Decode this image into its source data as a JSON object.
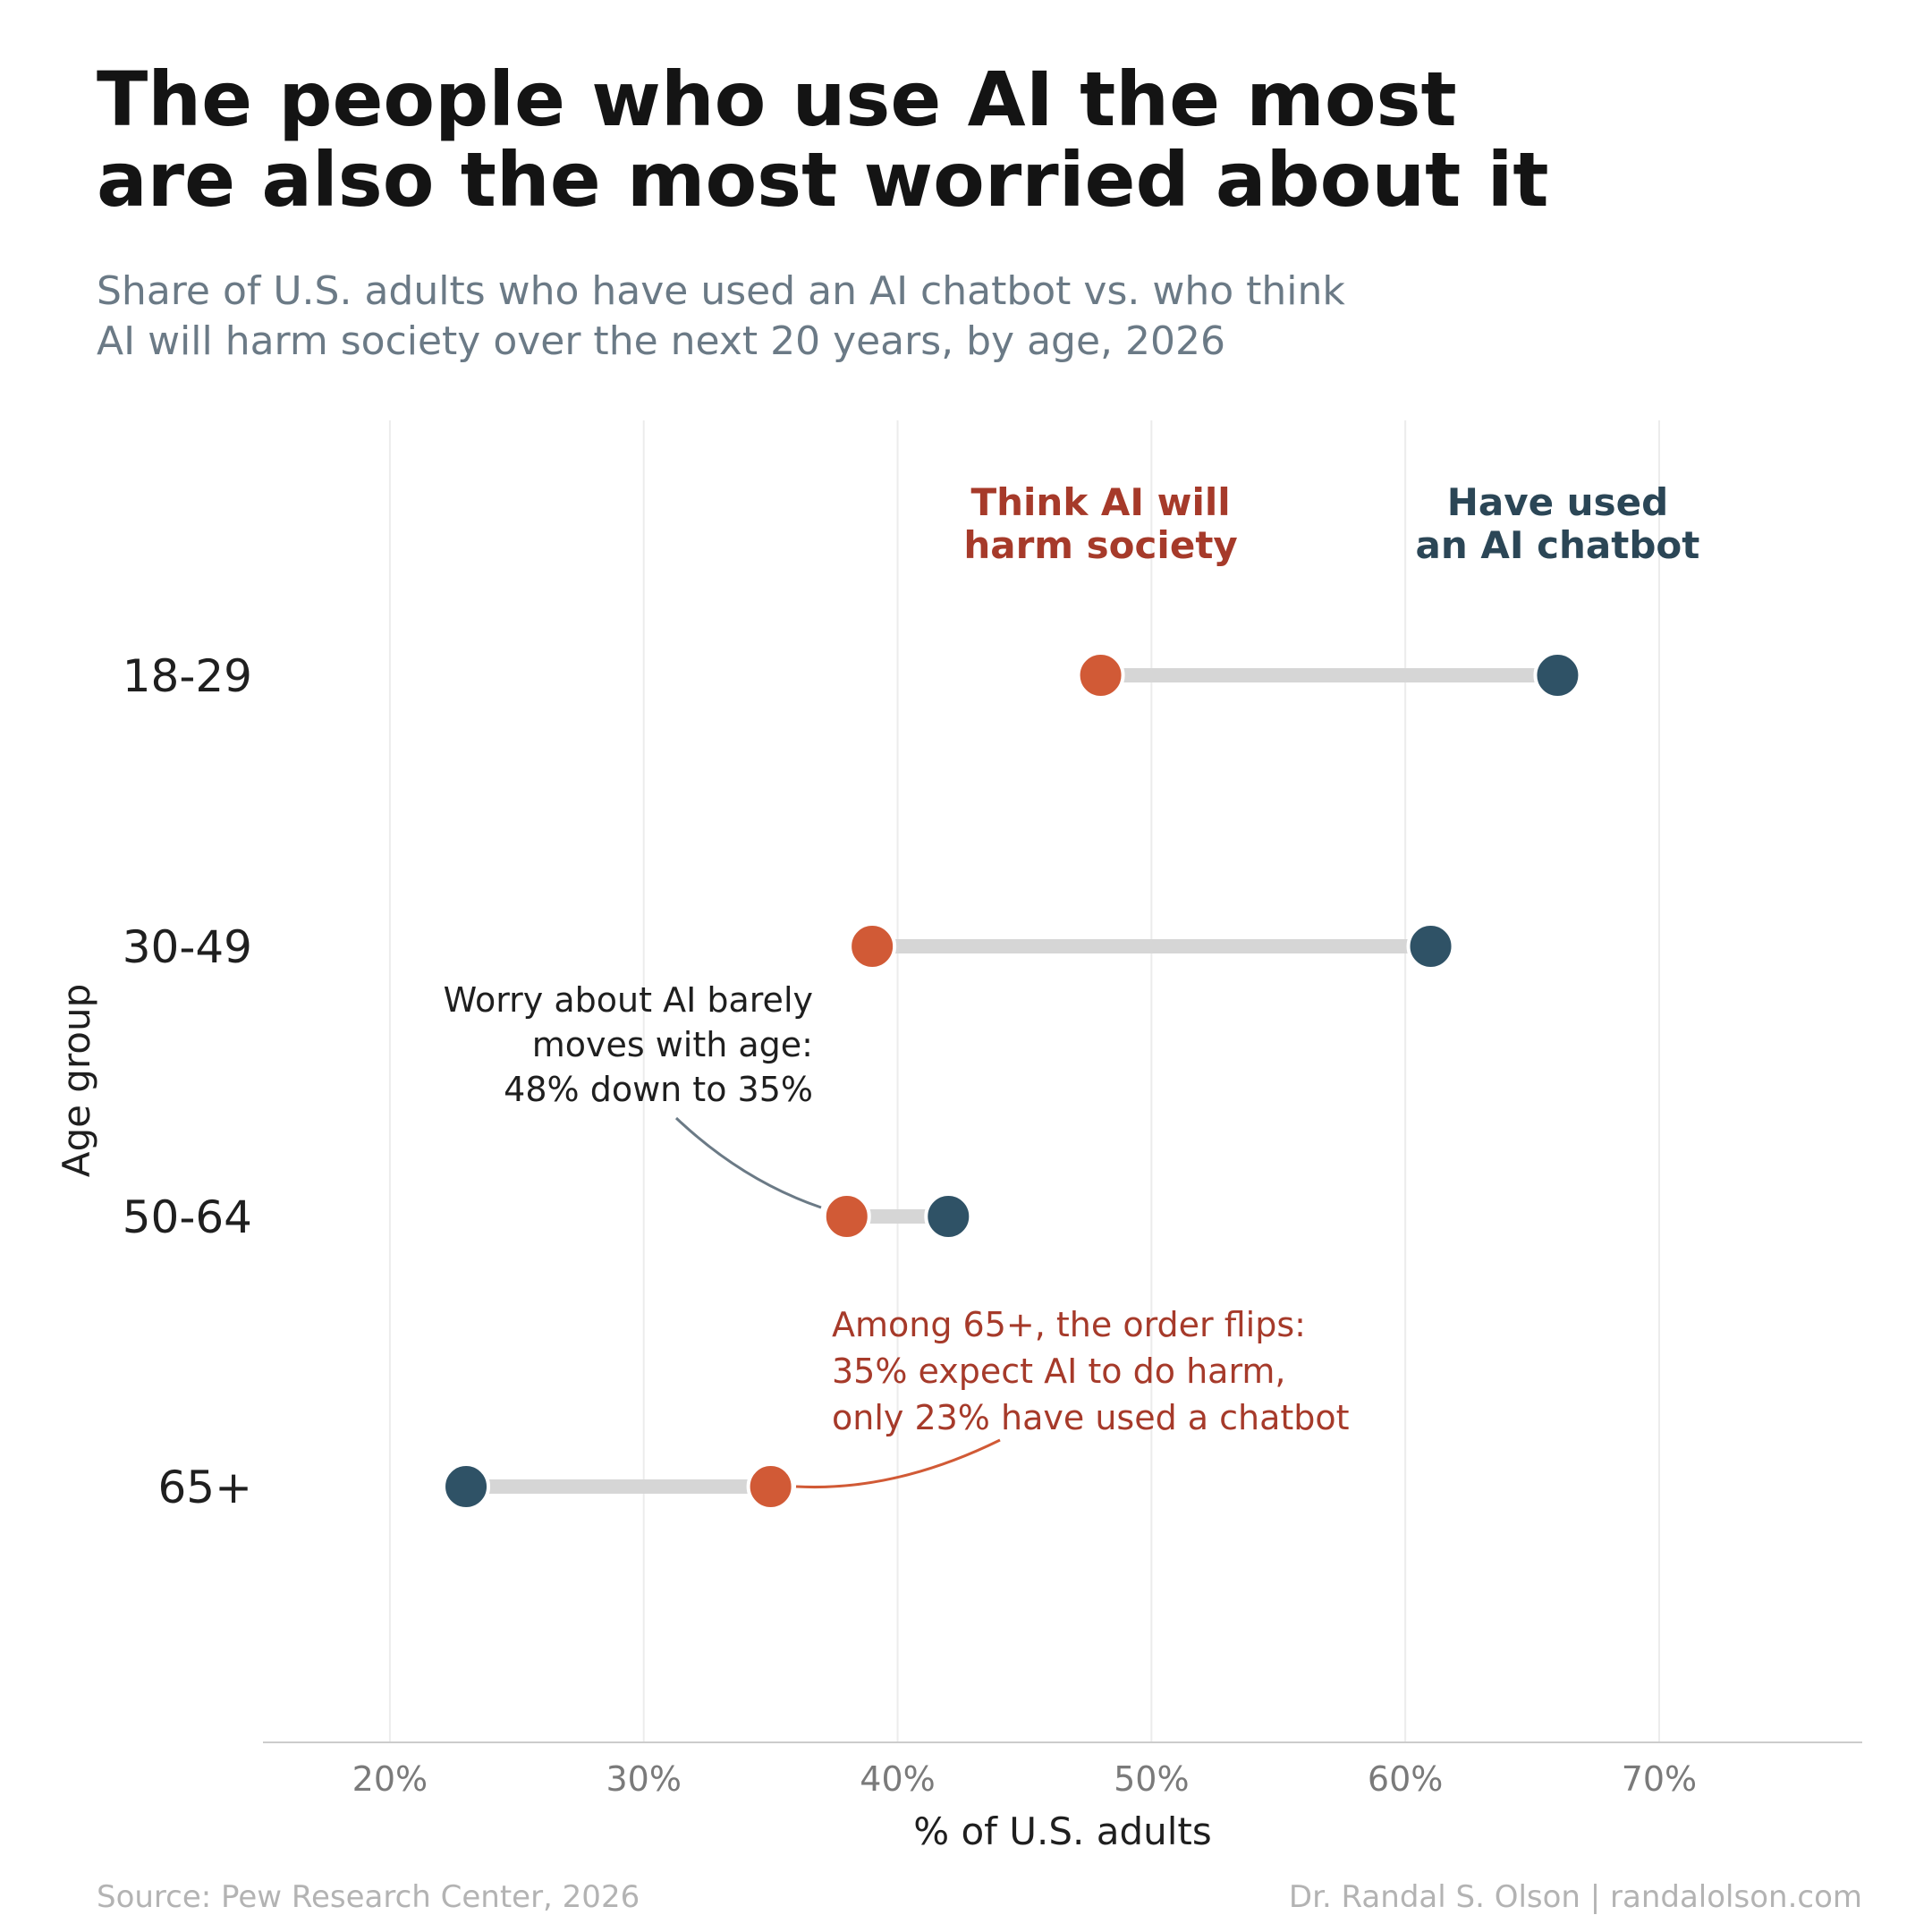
{
  "header": {
    "title_lines": [
      "The people who use AI the most",
      "are also the most worried about it"
    ],
    "subtitle_lines": [
      "Share of U.S. adults who have used an AI chatbot vs. who think",
      "AI will harm society over the next 20 years, by age, 2026"
    ]
  },
  "footer": {
    "source": "Source: Pew Research Center, 2026",
    "credit": "Dr. Randal S. Olson  |  randalolson.com"
  },
  "colors": {
    "harm": "#d15a36",
    "harm_text": "#a63a2a",
    "used": "#2f5266",
    "used_text": "#2b4656",
    "connector": "#d6d6d6",
    "grid": "#ececec",
    "annotation_grey": "#6b7a86"
  },
  "chart_data": {
    "type": "dumbbell",
    "x_axis_label": "% of U.S. adults",
    "y_axis_label": "Age group",
    "xlim": [
      15,
      78
    ],
    "x_ticks": [
      20,
      30,
      40,
      50,
      60,
      70
    ],
    "x_tick_labels": [
      "20%",
      "30%",
      "40%",
      "50%",
      "60%",
      "70%"
    ],
    "grid": "vertical",
    "categories": [
      "18-29",
      "30-49",
      "50-64",
      "65+"
    ],
    "series": [
      {
        "name_lines": [
          "Think AI will",
          "harm society"
        ],
        "key": "harm",
        "values": [
          48,
          39,
          38,
          35
        ]
      },
      {
        "name_lines": [
          "Have used",
          "an AI chatbot"
        ],
        "key": "used",
        "values": [
          66,
          61,
          42,
          23
        ]
      }
    ],
    "annotations": [
      {
        "lines": [
          "Worry about AI barely",
          "moves with age:",
          "48% down to 35%"
        ],
        "style": "grey",
        "target_category": "50-64",
        "target_series": "harm"
      },
      {
        "lines": [
          "Among 65+, the order flips:",
          "35% expect AI to do harm,",
          "only 23% have used a chatbot"
        ],
        "style": "harm",
        "target_category": "65+",
        "target_series": "harm"
      }
    ]
  }
}
